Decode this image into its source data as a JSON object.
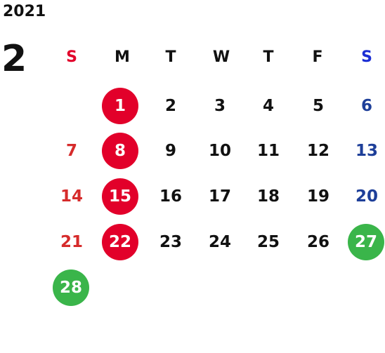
{
  "calendar": {
    "year": "2021",
    "month": "2",
    "weekdays": [
      "S",
      "M",
      "T",
      "W",
      "T",
      "F",
      "S"
    ],
    "weeks": [
      [
        "",
        "1",
        "2",
        "3",
        "4",
        "5",
        "6"
      ],
      [
        "7",
        "8",
        "9",
        "10",
        "11",
        "12",
        "13"
      ],
      [
        "14",
        "15",
        "16",
        "17",
        "18",
        "19",
        "20"
      ],
      [
        "21",
        "22",
        "23",
        "24",
        "25",
        "26",
        "27"
      ],
      [
        "28",
        "",
        "",
        "",
        "",
        "",
        ""
      ]
    ],
    "highlighted_red": [
      "1",
      "8",
      "15",
      "22"
    ],
    "highlighted_green": [
      "27",
      "28"
    ],
    "colors": {
      "sunday_header": "#e2002a",
      "saturday_header": "#1b2ed4",
      "sunday_text": "#d62b2b",
      "saturday_text": "#1e3f99",
      "red_circle": "#e2002a",
      "green_circle": "#3ab54a",
      "text": "#111111"
    }
  }
}
